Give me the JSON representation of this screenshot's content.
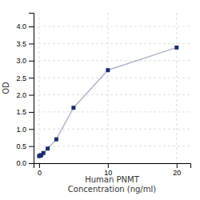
{
  "chart_data": {
    "type": "line",
    "x": [
      0,
      0.156,
      0.313,
      0.625,
      1.25,
      2.5,
      5,
      10,
      20
    ],
    "values": [
      0.208,
      0.222,
      0.238,
      0.298,
      0.428,
      0.698,
      1.622,
      2.722,
      3.384
    ],
    "color": "#1a2e6e",
    "marker": "square",
    "xlabel": [
      "Human PNMT",
      "Concentration (ng/ml)"
    ],
    "ylabel": "OD",
    "xlim": [
      -0.8,
      22
    ],
    "ylim": [
      0,
      4.4
    ],
    "xticks": [
      0,
      10,
      20
    ],
    "yticks": [
      {
        "value": 0,
        "label": "0.0"
      },
      0.5,
      {
        "value": 1,
        "label": "1.0"
      },
      1.5,
      {
        "value": 2,
        "label": "2.0"
      },
      2.5,
      {
        "value": 3,
        "label": "3.0"
      },
      3.5,
      {
        "value": 4,
        "label": "4.0"
      }
    ],
    "grid": true
  }
}
